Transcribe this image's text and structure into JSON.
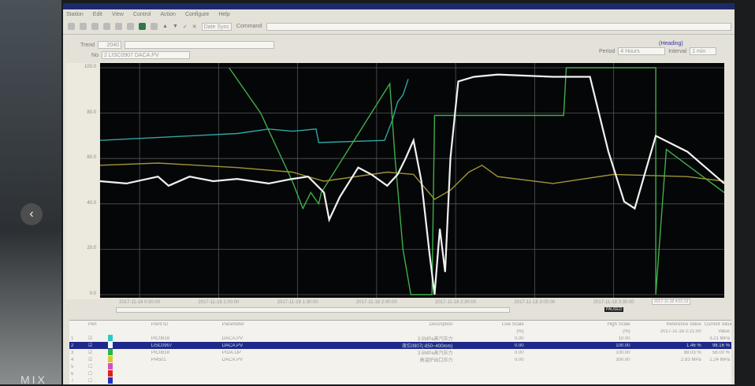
{
  "app": {
    "menu": [
      "Station",
      "Edit",
      "View",
      "Control",
      "Action",
      "Configure",
      "Help"
    ],
    "toolbar_select": "Date Sync",
    "command_label": "Command"
  },
  "trend": {
    "trend_label": "Trend",
    "trend_value": "2040",
    "no_label": "No",
    "point_select": "2 LISC0907 DACA.PV",
    "period_label": "Period",
    "period_value": "4 Hours",
    "interval_label": "Interval",
    "interval_value": "1 min",
    "link": "(Heading)",
    "time_from": "2017-11-18",
    "time_to": "4:01:13",
    "live_badge": "PAUSED"
  },
  "chart_data": {
    "type": "line",
    "ylim": [
      0,
      100
    ],
    "yticks": [
      "100.0",
      "80.0",
      "60.0",
      "40.0",
      "20.0",
      "0.0"
    ],
    "grid": true,
    "xticks": [
      "2017-11-18 0:30:00",
      "2017-11-18 1:00:00",
      "2017-11-18 1:30:00",
      "2017-11-18 2:00:00",
      "2017-11-18 2:30:00",
      "2017-11-18 3:00:00",
      "2017-11-18 3:30:00"
    ],
    "xrange": [
      "0:15",
      "4:12"
    ],
    "series": [
      {
        "color": "#2fa6a8",
        "points": [
          [
            "0:15",
            68
          ],
          [
            "1:07",
            71
          ],
          [
            "1:19",
            73
          ],
          [
            "1:28",
            72
          ],
          [
            "1:37",
            73
          ],
          [
            "1:38",
            67
          ],
          [
            "2:03",
            68
          ],
          [
            "2:06",
            77
          ],
          [
            "2:08",
            85
          ],
          [
            "2:10",
            88
          ],
          [
            "2:12",
            95
          ]
        ]
      },
      {
        "color": "#3db04a",
        "points": [
          [
            "1:04",
            100
          ],
          [
            "1:16",
            80
          ],
          [
            "1:28",
            50
          ],
          [
            "1:32",
            38
          ],
          [
            "1:35",
            45
          ],
          [
            "1:38",
            40
          ],
          [
            "1:39",
            45
          ],
          [
            "2:05",
            93
          ],
          [
            "2:07",
            60
          ],
          [
            "2:10",
            20
          ],
          [
            "2:13",
            0
          ],
          [
            "2:21",
            0
          ],
          [
            "2:22",
            79
          ],
          [
            "3:11",
            79
          ],
          [
            "3:12",
            100
          ],
          [
            "3:46",
            100
          ],
          [
            "3:46",
            0
          ],
          [
            "3:50",
            64
          ],
          [
            "4:12",
            45
          ]
        ]
      },
      {
        "color": "#a09436",
        "points": [
          [
            "0:15",
            57
          ],
          [
            "0:37",
            58
          ],
          [
            "1:07",
            56
          ],
          [
            "1:28",
            54
          ],
          [
            "1:40",
            50
          ],
          [
            "2:04",
            54
          ],
          [
            "2:14",
            53
          ],
          [
            "2:22",
            42
          ],
          [
            "2:28",
            46
          ],
          [
            "2:35",
            54
          ],
          [
            "2:40",
            57
          ],
          [
            "2:46",
            52
          ],
          [
            "3:07",
            49
          ],
          [
            "3:30",
            53
          ],
          [
            "3:58",
            52
          ],
          [
            "4:12",
            50
          ]
        ]
      },
      {
        "color": "#f2f2f2",
        "points": [
          [
            "0:15",
            50
          ],
          [
            "0:25",
            49
          ],
          [
            "0:37",
            52
          ],
          [
            "0:41",
            48
          ],
          [
            "0:49",
            52
          ],
          [
            "0:58",
            50
          ],
          [
            "1:07",
            51
          ],
          [
            "1:19",
            49
          ],
          [
            "1:28",
            51
          ],
          [
            "1:34",
            52
          ],
          [
            "1:40",
            45
          ],
          [
            "1:42",
            33
          ],
          [
            "1:46",
            43
          ],
          [
            "1:53",
            56
          ],
          [
            "1:58",
            53
          ],
          [
            "2:04",
            48
          ],
          [
            "2:08",
            53
          ],
          [
            "2:11",
            60
          ],
          [
            "2:14",
            68
          ],
          [
            "2:17",
            50
          ],
          [
            "2:20",
            19
          ],
          [
            "2:22",
            0
          ],
          [
            "2:24",
            29
          ],
          [
            "2:26",
            10
          ],
          [
            "2:28",
            60
          ],
          [
            "2:31",
            94
          ],
          [
            "2:37",
            96
          ],
          [
            "2:46",
            97
          ],
          [
            "3:07",
            96
          ],
          [
            "3:21",
            96
          ],
          [
            "3:28",
            63
          ],
          [
            "3:34",
            41
          ],
          [
            "3:38",
            38
          ],
          [
            "3:46",
            70
          ],
          [
            "3:58",
            63
          ],
          [
            "4:12",
            49
          ]
        ]
      }
    ]
  },
  "table": {
    "headers": [
      "Pen",
      "Point ID",
      "Parameter",
      "Description",
      "Low Scale",
      "High Scale",
      "Reference Value",
      "Current Value"
    ],
    "subheader": {
      "low": "(%)",
      "high": "(%)",
      "ref": "2017-11-18 2:21:00",
      "cur": "Value"
    },
    "rows": [
      {
        "n": "1",
        "color": "#2cc8c8",
        "id": "PIC0818",
        "param": "DACA.PV",
        "desc": "3.5MPa蒸汽压力",
        "low": "0.00",
        "high": "10.00",
        "ref": "",
        "cur": "3.21 MPa"
      },
      {
        "n": "2",
        "color": "#ffffff",
        "id": "LISC0907",
        "param": "DACA.PV",
        "desc": "液位0907(-850~400mm)",
        "low": "0.00",
        "high": "100.00",
        "ref": "1.46 %",
        "cur": "98.16 %",
        "selected": true
      },
      {
        "n": "3",
        "color": "#22bb44",
        "id": "PIC0818",
        "param": "PIDA.OP",
        "desc": "3.5MPa蒸汽压力",
        "low": "0.00",
        "high": "100.00",
        "ref": "88.03 %",
        "cur": "58.00 %"
      },
      {
        "n": "4",
        "color": "#d8c830",
        "id": "PI4501",
        "param": "DACA.PV",
        "desc": "高温炉出口压力",
        "low": "0.00",
        "high": "300.00",
        "ref": "2.83 MPa",
        "cur": "1.24 MPa"
      },
      {
        "n": "5",
        "color": "#d050c0"
      },
      {
        "n": "6",
        "color": "#e02020"
      },
      {
        "n": "7",
        "color": "#2030c0"
      }
    ]
  },
  "overlay": {
    "watermark": "MIX"
  }
}
